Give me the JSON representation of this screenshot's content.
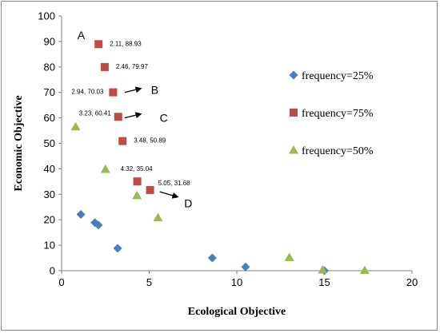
{
  "chart_data": {
    "type": "scatter",
    "xlabel": "Ecological Objective",
    "ylabel": "Economic Objective",
    "xlim": [
      0,
      20
    ],
    "ylim": [
      0,
      100
    ],
    "xticks": [
      "0",
      "5",
      "10",
      "15",
      "20"
    ],
    "yticks": [
      "0",
      "10",
      "20",
      "30",
      "40",
      "50",
      "60",
      "70",
      "80",
      "90",
      "100"
    ],
    "grid": false,
    "legend_position": "right",
    "series": [
      {
        "name": "frequency=25%",
        "marker": "diamond",
        "color": "#4a7ebb",
        "points": [
          {
            "x": 1.1,
            "y": 22.1
          },
          {
            "x": 1.9,
            "y": 18.9
          },
          {
            "x": 2.1,
            "y": 17.9
          },
          {
            "x": 3.2,
            "y": 8.8
          },
          {
            "x": 8.6,
            "y": 5.0
          },
          {
            "x": 10.5,
            "y": 1.5
          },
          {
            "x": 15.0,
            "y": 0.0
          }
        ]
      },
      {
        "name": "frequency=75%",
        "marker": "square",
        "color": "#be4b48",
        "points": [
          {
            "x": 2.11,
            "y": 88.93,
            "label": "2.11, 88.93"
          },
          {
            "x": 2.46,
            "y": 79.97,
            "label": "2.46, 79.97"
          },
          {
            "x": 2.94,
            "y": 70.03,
            "label": "2.94, 70.03"
          },
          {
            "x": 3.23,
            "y": 60.41,
            "label": "3.23, 60.41"
          },
          {
            "x": 3.48,
            "y": 50.89,
            "label": "3.48, 50.89"
          },
          {
            "x": 4.32,
            "y": 35.04,
            "label": "4.32, 35.04"
          },
          {
            "x": 5.05,
            "y": 31.68,
            "label": "5.05, 31.68"
          }
        ]
      },
      {
        "name": "frequency=50%",
        "marker": "triangle",
        "color": "#98b954",
        "points": [
          {
            "x": 0.8,
            "y": 56.5
          },
          {
            "x": 2.5,
            "y": 39.8
          },
          {
            "x": 4.3,
            "y": 29.5
          },
          {
            "x": 5.5,
            "y": 20.8
          },
          {
            "x": 13.0,
            "y": 5.2
          },
          {
            "x": 14.9,
            "y": 0.3
          },
          {
            "x": 17.3,
            "y": 0.1
          }
        ]
      }
    ],
    "annotations": [
      {
        "text": "A",
        "x": 0.9,
        "y": 92.5
      },
      {
        "text": "B",
        "x": 5.1,
        "y": 71.0,
        "arrow_from": [
          3.6,
          70.0
        ],
        "arrow_to": [
          4.5,
          71.5
        ]
      },
      {
        "text": "C",
        "x": 5.6,
        "y": 60.0,
        "arrow_from": [
          3.6,
          60.0
        ],
        "arrow_to": [
          4.5,
          61.5
        ]
      },
      {
        "text": "D",
        "x": 7.0,
        "y": 26.5,
        "arrow_from": [
          5.6,
          31.0
        ],
        "arrow_to": [
          6.6,
          29.0
        ]
      }
    ]
  }
}
